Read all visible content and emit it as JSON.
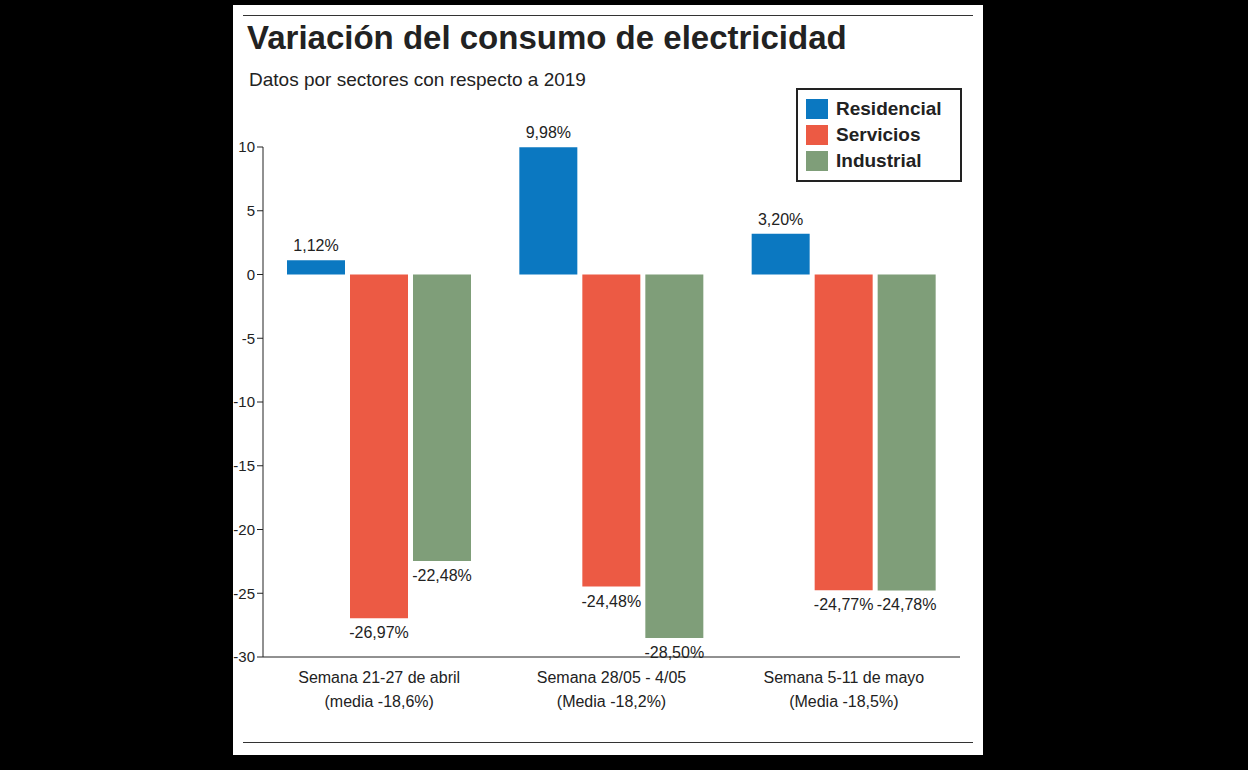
{
  "chart_data": {
    "type": "bar",
    "title": "Variación del consumo de electricidad",
    "subtitle": "Datos por sectores con respecto a 2019",
    "categories": [
      "Semana 21-27 de abril",
      "Semana 28/05 - 4/05",
      "Semana 5-11 de mayo"
    ],
    "category_subtitles": [
      "(media -18,6%)",
      "(Media -18,2%)",
      "(Media -18,5%)"
    ],
    "series": [
      {
        "name": "Residencial",
        "color": "#0b78c1",
        "values": [
          1.12,
          9.98,
          3.2
        ],
        "value_labels": [
          "1,12%",
          "9,98%",
          "3,20%"
        ]
      },
      {
        "name": "Servicios",
        "color": "#ec5a44",
        "values": [
          -26.97,
          -24.48,
          -24.77
        ],
        "value_labels": [
          "-26,97%",
          "-24,48%",
          "-24,77%"
        ]
      },
      {
        "name": "Industrial",
        "color": "#7f9e79",
        "values": [
          -22.48,
          -28.5,
          -24.78
        ],
        "value_labels": [
          "-22,48%",
          "-28,50%",
          "-24,78%"
        ]
      }
    ],
    "ylim": [
      -30,
      10
    ],
    "yticks": [
      -30,
      -25,
      -20,
      -15,
      -10,
      -5,
      0,
      5,
      10
    ],
    "grid": false,
    "legend": "top-right",
    "data_labels": true
  }
}
